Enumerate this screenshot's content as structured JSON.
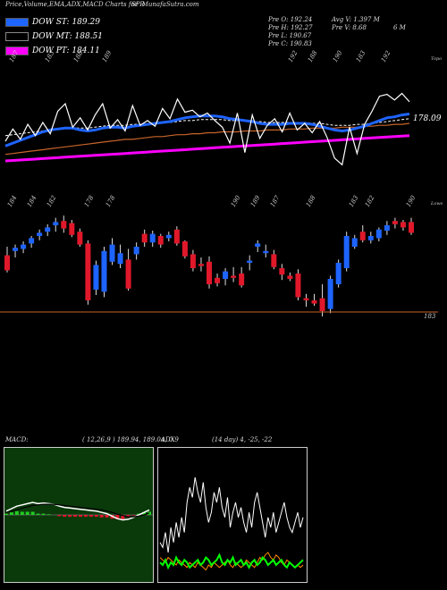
{
  "header": {
    "title": "Price,Volume,EMA,ADX,MACD Charts for R",
    "site": "SP MunafaSutra.com"
  },
  "legend": [
    {
      "label": "DOW ST: 189.29",
      "color": "#1e64ff"
    },
    {
      "label": "DOW MT: 188.51",
      "color": "#000000"
    },
    {
      "label": "DOW PT: 184.11",
      "color": "#ff00ff"
    }
  ],
  "ohlc": {
    "col1": [
      "Pre O: 192.24",
      "Pre H: 192.27",
      "Pre L: 190.67",
      "Pre C: 190.83"
    ],
    "col2": [
      "Avg V: 1.397 M",
      "Pre V: 8.68",
      "",
      ""
    ],
    "col3": [
      "",
      "6 M",
      "",
      ""
    ]
  },
  "colors": {
    "bull": "#1e64ff",
    "bear": "#e0182a",
    "ema_fast": "#1e64ff",
    "ema_pt": "#ff00ff",
    "ema_slow": "#c8642a",
    "price_line": "#ffffff",
    "macd_bg": "#0a3a0a",
    "macd_green": "#22cc22",
    "adx_green": "#00ff00",
    "adx_orange": "#ff8800"
  },
  "chart_data": {
    "type": "candlestick",
    "top_labels": [
      "187",
      "183",
      "188",
      "189",
      "192",
      "188",
      "190",
      "183",
      "192"
    ],
    "mid_labels": [
      "184",
      "184",
      "182",
      "178",
      "178",
      "190",
      "189",
      "187",
      "188",
      "183",
      "182",
      "190"
    ],
    "right_top": "Topo",
    "right_mid": "Lows",
    "last_price": "178.09",
    "lower_label": "183",
    "candles": [
      {
        "o": 190.2,
        "h": 191.0,
        "l": 188.6,
        "c": 188.8
      },
      {
        "o": 190.6,
        "h": 191.2,
        "l": 190.0,
        "c": 190.9
      },
      {
        "o": 190.8,
        "h": 191.5,
        "l": 190.4,
        "c": 191.2
      },
      {
        "o": 191.3,
        "h": 192.0,
        "l": 190.9,
        "c": 191.8
      },
      {
        "o": 192.0,
        "h": 192.6,
        "l": 191.6,
        "c": 192.3
      },
      {
        "o": 192.4,
        "h": 193.1,
        "l": 192.0,
        "c": 192.8
      },
      {
        "o": 193.0,
        "h": 193.7,
        "l": 192.4,
        "c": 193.3
      },
      {
        "o": 193.4,
        "h": 193.9,
        "l": 192.3,
        "c": 192.7
      },
      {
        "o": 193.2,
        "h": 193.5,
        "l": 191.9,
        "c": 192.1
      },
      {
        "o": 192.4,
        "h": 192.7,
        "l": 191.0,
        "c": 191.2
      },
      {
        "o": 191.3,
        "h": 191.6,
        "l": 185.6,
        "c": 186.0
      },
      {
        "o": 187.0,
        "h": 189.7,
        "l": 186.5,
        "c": 189.3
      },
      {
        "o": 186.8,
        "h": 191.0,
        "l": 186.3,
        "c": 190.6
      },
      {
        "o": 189.6,
        "h": 191.8,
        "l": 189.3,
        "c": 191.2
      },
      {
        "o": 189.4,
        "h": 191.2,
        "l": 189.0,
        "c": 190.4
      },
      {
        "o": 189.8,
        "h": 190.8,
        "l": 186.9,
        "c": 187.1
      },
      {
        "o": 190.3,
        "h": 191.4,
        "l": 189.8,
        "c": 191.0
      },
      {
        "o": 192.2,
        "h": 192.6,
        "l": 191.0,
        "c": 191.4
      },
      {
        "o": 191.4,
        "h": 192.5,
        "l": 191.0,
        "c": 192.2
      },
      {
        "o": 192.0,
        "h": 192.2,
        "l": 190.9,
        "c": 191.2
      },
      {
        "o": 191.8,
        "h": 192.4,
        "l": 191.5,
        "c": 192.1
      },
      {
        "o": 192.6,
        "h": 192.9,
        "l": 191.1,
        "c": 191.3
      },
      {
        "o": 191.5,
        "h": 191.6,
        "l": 189.9,
        "c": 190.1
      },
      {
        "o": 190.3,
        "h": 190.7,
        "l": 188.7,
        "c": 189.0
      },
      {
        "o": 189.4,
        "h": 190.0,
        "l": 188.7,
        "c": 189.2
      },
      {
        "o": 189.6,
        "h": 190.1,
        "l": 187.1,
        "c": 187.5
      },
      {
        "o": 188.1,
        "h": 188.5,
        "l": 187.3,
        "c": 187.6
      },
      {
        "o": 188.0,
        "h": 189.0,
        "l": 187.4,
        "c": 188.7
      },
      {
        "o": 188.3,
        "h": 189.1,
        "l": 187.7,
        "c": 188.1
      },
      {
        "o": 188.5,
        "h": 189.1,
        "l": 187.2,
        "c": 187.4
      },
      {
        "o": 189.5,
        "h": 190.2,
        "l": 188.8,
        "c": 189.7
      },
      {
        "o": 191.0,
        "h": 191.6,
        "l": 190.5,
        "c": 191.3
      },
      {
        "o": 190.4,
        "h": 191.2,
        "l": 190.0,
        "c": 190.6
      },
      {
        "o": 190.3,
        "h": 190.7,
        "l": 188.9,
        "c": 189.1
      },
      {
        "o": 189.0,
        "h": 189.4,
        "l": 187.9,
        "c": 188.4
      },
      {
        "o": 188.3,
        "h": 188.6,
        "l": 187.8,
        "c": 188.0
      },
      {
        "o": 188.5,
        "h": 188.9,
        "l": 186.0,
        "c": 186.3
      },
      {
        "o": 186.2,
        "h": 186.6,
        "l": 185.4,
        "c": 186.0
      },
      {
        "o": 186.0,
        "h": 186.6,
        "l": 185.5,
        "c": 185.7
      },
      {
        "o": 186.2,
        "h": 187.5,
        "l": 184.5,
        "c": 185.0
      },
      {
        "o": 185.2,
        "h": 188.3,
        "l": 184.8,
        "c": 188.0
      },
      {
        "o": 187.5,
        "h": 189.8,
        "l": 187.2,
        "c": 189.5
      },
      {
        "o": 189.0,
        "h": 192.4,
        "l": 188.7,
        "c": 192.0
      },
      {
        "o": 191.0,
        "h": 192.1,
        "l": 190.8,
        "c": 191.8
      },
      {
        "o": 192.4,
        "h": 193.0,
        "l": 191.4,
        "c": 191.6
      },
      {
        "o": 191.6,
        "h": 192.4,
        "l": 191.3,
        "c": 192.0
      },
      {
        "o": 191.8,
        "h": 192.8,
        "l": 191.5,
        "c": 192.6
      },
      {
        "o": 192.5,
        "h": 193.4,
        "l": 192.1,
        "c": 193.0
      },
      {
        "o": 193.4,
        "h": 193.7,
        "l": 192.7,
        "c": 193.1
      },
      {
        "o": 193.3,
        "h": 193.5,
        "l": 192.5,
        "c": 192.8
      },
      {
        "o": 193.3,
        "h": 193.7,
        "l": 192.1,
        "c": 192.3
      }
    ],
    "price_line": [
      192.0,
      193.3,
      192.2,
      193.8,
      192.6,
      194.0,
      192.8,
      195.2,
      196.0,
      193.5,
      194.5,
      193.2,
      194.8,
      196.0,
      193.4,
      194.3,
      193.1,
      195.8,
      193.7,
      194.2,
      193.6,
      195.5,
      194.4,
      196.5,
      195.1,
      195.3,
      194.6,
      195.0,
      194.2,
      193.5,
      191.8,
      195.0,
      190.8,
      194.8,
      192.3,
      193.7,
      194.4,
      193.0,
      195.0,
      193.2,
      193.9,
      192.9,
      194.1,
      192.4,
      190.2,
      189.5,
      193.5,
      190.7,
      193.8,
      195.2,
      196.8,
      197.0,
      196.4,
      197.1,
      196.2
    ],
    "ema_st": [
      191.5,
      191.8,
      192.1,
      192.4,
      192.7,
      193.0,
      193.2,
      193.3,
      193.4,
      193.4,
      193.2,
      193.1,
      193.2,
      193.4,
      193.5,
      193.5,
      193.4,
      193.6,
      193.7,
      193.8,
      193.9,
      194.0,
      194.1,
      194.3,
      194.5,
      194.6,
      194.7,
      194.7,
      194.7,
      194.6,
      194.4,
      194.3,
      194.2,
      194.1,
      193.9,
      193.8,
      193.8,
      193.8,
      193.9,
      193.9,
      193.9,
      193.8,
      193.6,
      193.4,
      193.2,
      193.1,
      193.2,
      193.4,
      193.6,
      193.9,
      194.2,
      194.5,
      194.6,
      194.8,
      194.9
    ],
    "ema_mt": [
      192.6,
      192.7,
      192.8,
      192.9,
      193.0,
      193.1,
      193.2,
      193.3,
      193.4,
      193.4,
      193.4,
      193.4,
      193.5,
      193.6,
      193.7,
      193.7,
      193.7,
      193.8,
      193.8,
      193.9,
      193.9,
      194.0,
      194.0,
      194.1,
      194.2,
      194.2,
      194.3,
      194.3,
      194.3,
      194.3,
      194.2,
      194.2,
      194.2,
      194.1,
      194.1,
      194.0,
      194.0,
      194.0,
      194.0,
      194.0,
      194.0,
      193.9,
      193.9,
      193.8,
      193.7,
      193.7,
      193.7,
      193.8,
      193.8,
      193.9,
      194.0,
      194.1,
      194.2,
      194.3,
      194.4
    ],
    "ema_slow": [
      190.6,
      190.7,
      190.8,
      190.9,
      191.0,
      191.1,
      191.2,
      191.3,
      191.4,
      191.5,
      191.6,
      191.7,
      191.8,
      191.9,
      192.0,
      192.1,
      192.2,
      192.2,
      192.3,
      192.4,
      192.5,
      192.5,
      192.6,
      192.7,
      192.7,
      192.8,
      192.8,
      192.9,
      192.9,
      193.0,
      193.0,
      193.0,
      193.1,
      193.1,
      193.1,
      193.2,
      193.2,
      193.2,
      193.3,
      193.3,
      193.3,
      193.4,
      193.4,
      193.4,
      193.4,
      193.5,
      193.5,
      193.5,
      193.6,
      193.6,
      193.7,
      193.7,
      193.8,
      193.8,
      193.9
    ],
    "ema_pt": [
      189.9,
      189.95,
      190.0,
      190.05,
      190.1,
      190.15,
      190.2,
      190.25,
      190.3,
      190.35,
      190.4,
      190.45,
      190.5,
      190.55,
      190.6,
      190.65,
      190.7,
      190.75,
      190.8,
      190.85,
      190.9,
      190.95,
      191.0,
      191.05,
      191.1,
      191.15,
      191.2,
      191.25,
      191.3,
      191.35,
      191.4,
      191.45,
      191.5,
      191.55,
      191.6,
      191.65,
      191.7,
      191.75,
      191.8,
      191.85,
      191.9,
      191.95,
      192.0,
      192.05,
      192.1,
      192.15,
      192.2,
      192.25,
      192.3,
      192.35,
      192.4,
      192.45,
      192.5,
      192.55,
      192.6
    ],
    "macd": {
      "title": "MACD:",
      "params": "( 12,26,9 ) 189.94,  189.04,  0.9",
      "macd_line": [
        0.3,
        0.5,
        0.7,
        0.8,
        0.9,
        1.0,
        0.9,
        0.95,
        0.9,
        0.85,
        0.7,
        0.6,
        0.55,
        0.5,
        0.45,
        0.4,
        0.35,
        0.3,
        0.2,
        0.1,
        -0.1,
        -0.3,
        -0.4,
        -0.35,
        -0.2,
        0.0,
        0.2,
        0.4
      ],
      "signal_line": [
        0.2,
        0.3,
        0.4,
        0.55,
        0.65,
        0.75,
        0.8,
        0.85,
        0.85,
        0.85,
        0.8,
        0.75,
        0.7,
        0.65,
        0.6,
        0.55,
        0.5,
        0.45,
        0.4,
        0.3,
        0.2,
        0.05,
        -0.05,
        -0.15,
        -0.15,
        -0.1,
        0.0,
        0.15
      ],
      "hist": [
        0.1,
        0.2,
        0.3,
        0.25,
        0.25,
        0.25,
        0.1,
        0.1,
        0.05,
        0.0,
        -0.1,
        -0.15,
        -0.15,
        -0.15,
        -0.15,
        -0.15,
        -0.15,
        -0.15,
        -0.2,
        -0.2,
        -0.3,
        -0.35,
        -0.35,
        -0.2,
        -0.05,
        0.1,
        0.2,
        0.25
      ]
    },
    "adx": {
      "title": "ADX",
      "params": "(14 day) 4,  -25,  -22",
      "adx_white": [
        14,
        12,
        18,
        10,
        20,
        14,
        22,
        16,
        24,
        18,
        30,
        36,
        32,
        40,
        34,
        30,
        38,
        28,
        22,
        26,
        34,
        30,
        36,
        28,
        24,
        32,
        20,
        26,
        30,
        24,
        28,
        22,
        18,
        26,
        20,
        30,
        34,
        28,
        22,
        16,
        24,
        20,
        26,
        18,
        22,
        26,
        30,
        24,
        20,
        18,
        22,
        26,
        20,
        24
      ],
      "adx_green": [
        6,
        5,
        7,
        4,
        6,
        5,
        8,
        6,
        5,
        7,
        6,
        4,
        5,
        6,
        7,
        5,
        6,
        8,
        7,
        5,
        6,
        7,
        9,
        6,
        5,
        7,
        6,
        8,
        5,
        6,
        7,
        5,
        6,
        4,
        6,
        7,
        5,
        6,
        8,
        7,
        5,
        6,
        7,
        5,
        6,
        7,
        5,
        4,
        6,
        5,
        4,
        5,
        6,
        7
      ],
      "adx_orange": [
        8,
        7,
        6,
        8,
        7,
        6,
        5,
        7,
        6,
        5,
        4,
        6,
        5,
        4,
        6,
        5,
        4,
        3,
        5,
        4,
        6,
        5,
        4,
        5,
        6,
        7,
        5,
        4,
        6,
        5,
        4,
        5,
        7,
        6,
        5,
        4,
        6,
        8,
        7,
        9,
        10,
        8,
        7,
        9,
        8,
        6,
        5,
        7,
        6,
        5,
        4,
        5,
        4,
        5
      ]
    }
  }
}
